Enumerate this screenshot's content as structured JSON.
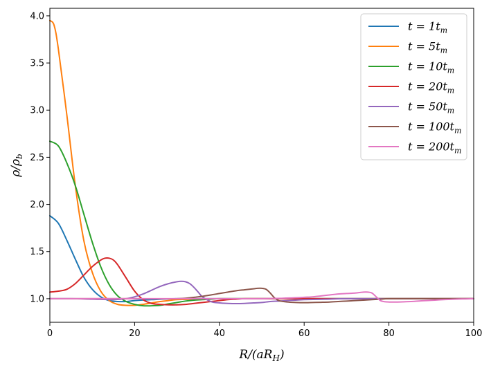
{
  "chart_data": {
    "type": "line",
    "xlabel": "R/(aR_H)",
    "ylabel": "ρ/ρ_b",
    "xlim": [
      0,
      100
    ],
    "ylim": [
      0.75,
      4.08
    ],
    "xticks": [
      0,
      20,
      40,
      60,
      80,
      100
    ],
    "xtick_labels": [
      "0",
      "20",
      "40",
      "60",
      "80",
      "100"
    ],
    "yticks": [
      1.0,
      1.5,
      2.0,
      2.5,
      3.0,
      3.5,
      4.0
    ],
    "ytick_labels": [
      "1.0",
      "1.5",
      "2.0",
      "2.5",
      "3.0",
      "3.5",
      "4.0"
    ],
    "grid": false,
    "legend_position": "top-right",
    "series": [
      {
        "name": "t = 1t_m",
        "color": "#1f77b4",
        "x": [
          0,
          2,
          4,
          6,
          8,
          10,
          12,
          14,
          16,
          18,
          20,
          24,
          30,
          40,
          50,
          60,
          70,
          80,
          90,
          100
        ],
        "y": [
          1.88,
          1.8,
          1.62,
          1.42,
          1.23,
          1.1,
          1.02,
          0.98,
          0.97,
          0.97,
          0.98,
          0.99,
          1.0,
          1.0,
          1.0,
          1.0,
          1.0,
          1.0,
          1.0,
          1.0
        ]
      },
      {
        "name": "t = 5t_m",
        "color": "#ff7f0e",
        "x": [
          0,
          1,
          2,
          4,
          6,
          8,
          10,
          12,
          14,
          16,
          18,
          20,
          22,
          24,
          26,
          28,
          30,
          35,
          40,
          50,
          60,
          70,
          80,
          90,
          100
        ],
        "y": [
          3.95,
          3.9,
          3.65,
          2.95,
          2.2,
          1.62,
          1.28,
          1.08,
          0.98,
          0.94,
          0.93,
          0.93,
          0.94,
          0.955,
          0.97,
          0.98,
          0.99,
          0.995,
          1.0,
          1.0,
          1.0,
          1.0,
          1.0,
          1.0,
          1.0
        ]
      },
      {
        "name": "t = 10t_m",
        "color": "#2ca02c",
        "x": [
          0,
          2,
          4,
          6,
          8,
          10,
          12,
          14,
          16,
          18,
          20,
          22,
          24,
          26,
          28,
          30,
          32,
          34,
          36,
          38,
          40,
          45,
          50,
          60,
          70,
          80,
          90,
          100
        ],
        "y": [
          2.67,
          2.62,
          2.44,
          2.2,
          1.9,
          1.6,
          1.34,
          1.15,
          1.03,
          0.97,
          0.94,
          0.925,
          0.925,
          0.93,
          0.945,
          0.96,
          0.975,
          0.985,
          0.99,
          0.995,
          1.0,
          1.0,
          1.0,
          1.0,
          1.0,
          1.0,
          1.0,
          1.0
        ]
      },
      {
        "name": "t = 20t_m",
        "color": "#d62728",
        "x": [
          0,
          2,
          4,
          6,
          8,
          10,
          12,
          13,
          14,
          15,
          16,
          18,
          20,
          22,
          24,
          26,
          28,
          30,
          32,
          34,
          36,
          38,
          40,
          42,
          44,
          46,
          50,
          60,
          70,
          80,
          90,
          100
        ],
        "y": [
          1.07,
          1.08,
          1.1,
          1.16,
          1.25,
          1.34,
          1.41,
          1.43,
          1.43,
          1.41,
          1.36,
          1.22,
          1.08,
          0.99,
          0.95,
          0.94,
          0.935,
          0.935,
          0.94,
          0.95,
          0.96,
          0.97,
          0.98,
          0.99,
          0.995,
          1.0,
          1.0,
          1.0,
          1.0,
          1.0,
          1.0,
          1.0
        ]
      },
      {
        "name": "t = 50t_m",
        "color": "#9467bd",
        "x": [
          0,
          5,
          10,
          15,
          18,
          20,
          22,
          24,
          26,
          28,
          30,
          31,
          32,
          33,
          34,
          35,
          36,
          38,
          40,
          42,
          44,
          46,
          48,
          50,
          52,
          54,
          56,
          58,
          60,
          65,
          70,
          80,
          90,
          100
        ],
        "y": [
          1.0,
          1.0,
          0.995,
          0.99,
          1.0,
          1.02,
          1.05,
          1.09,
          1.13,
          1.16,
          1.18,
          1.185,
          1.18,
          1.16,
          1.12,
          1.07,
          1.02,
          0.97,
          0.955,
          0.95,
          0.948,
          0.95,
          0.955,
          0.96,
          0.97,
          0.975,
          0.98,
          0.985,
          0.99,
          0.995,
          1.0,
          1.0,
          1.0,
          1.0
        ]
      },
      {
        "name": "t = 100t_m",
        "color": "#8c564b",
        "x": [
          0,
          10,
          20,
          30,
          35,
          38,
          40,
          42,
          44,
          46,
          48,
          49,
          50,
          51,
          52,
          53,
          54,
          56,
          58,
          60,
          62,
          64,
          66,
          68,
          70,
          72,
          74,
          76,
          78,
          80,
          85,
          90,
          100
        ],
        "y": [
          1.0,
          1.0,
          1.0,
          1.0,
          1.02,
          1.04,
          1.055,
          1.07,
          1.085,
          1.095,
          1.105,
          1.11,
          1.11,
          1.1,
          1.06,
          1.01,
          0.98,
          0.965,
          0.96,
          0.958,
          0.96,
          0.962,
          0.965,
          0.97,
          0.975,
          0.98,
          0.985,
          0.99,
          0.995,
          1.0,
          1.0,
          1.0,
          1.0
        ]
      },
      {
        "name": "t = 200t_m",
        "color": "#e377c2",
        "x": [
          0,
          10,
          20,
          30,
          40,
          50,
          55,
          58,
          60,
          62,
          64,
          66,
          68,
          70,
          72,
          74,
          75,
          76,
          77,
          78,
          79,
          80,
          82,
          84,
          86,
          88,
          90,
          92,
          94,
          96,
          98,
          100
        ],
        "y": [
          1.0,
          1.0,
          1.0,
          1.0,
          1.0,
          1.0,
          1.005,
          1.01,
          1.015,
          1.02,
          1.03,
          1.04,
          1.05,
          1.055,
          1.06,
          1.07,
          1.07,
          1.06,
          1.02,
          0.98,
          0.968,
          0.965,
          0.965,
          0.968,
          0.972,
          0.978,
          0.983,
          0.988,
          0.992,
          0.996,
          0.998,
          1.0
        ]
      }
    ]
  }
}
